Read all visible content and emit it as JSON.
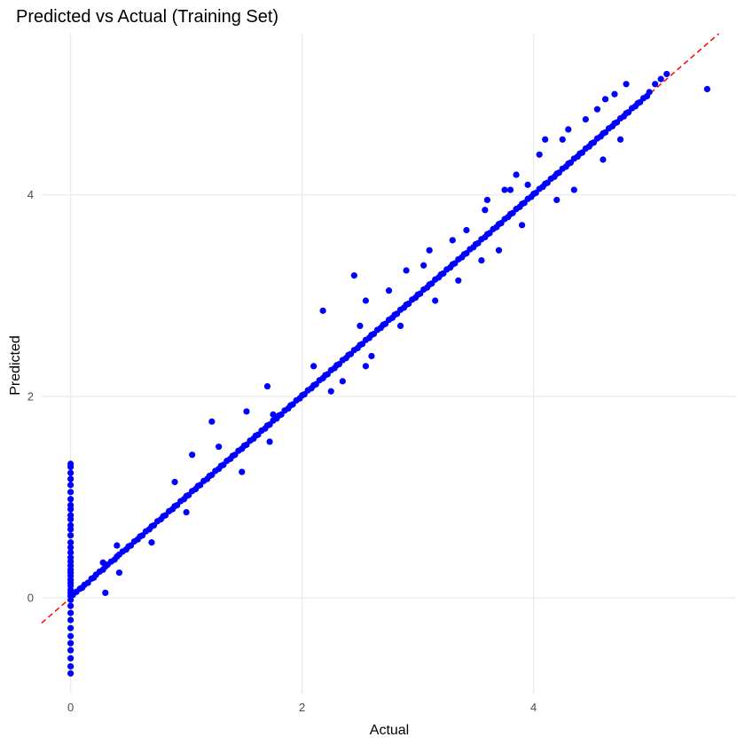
{
  "chart_data": {
    "type": "scatter",
    "title": "Predicted vs Actual (Training Set)",
    "xlabel": "Actual",
    "ylabel": "Predicted",
    "xlim": [
      -0.25,
      5.75
    ],
    "ylim": [
      -0.95,
      5.6
    ],
    "x_ticks": [
      0,
      2,
      4
    ],
    "x_tick_labels": [
      "0",
      "2",
      "4"
    ],
    "y_ticks": [
      0,
      2,
      4
    ],
    "y_tick_labels": [
      "0",
      "2",
      "4"
    ],
    "grid": true,
    "legend": "none",
    "reference_line": {
      "style": "dashed",
      "slope": 1,
      "intercept": 0,
      "color": "#ff0000"
    },
    "point_color": "#0000ff",
    "series": [
      {
        "x": [
          0,
          0,
          0,
          0,
          0,
          0,
          0,
          0,
          0,
          0,
          0,
          0,
          0,
          0,
          0,
          0,
          0,
          0,
          0,
          0,
          0,
          0,
          0,
          0,
          0,
          0,
          0,
          0,
          0,
          0,
          0,
          0,
          0,
          0,
          0,
          0,
          0,
          0,
          0,
          0,
          0.02,
          0.05,
          0.08,
          0.1,
          0.12,
          0.15,
          0.18,
          0.2,
          0.22,
          0.25,
          0.28,
          0.3,
          0.32,
          0.35,
          0.38,
          0.4,
          0.42,
          0.45,
          0.48,
          0.5,
          0.52,
          0.55,
          0.58,
          0.6,
          0.62,
          0.65,
          0.68,
          0.7,
          0.72,
          0.75,
          0.78,
          0.8,
          0.82,
          0.85,
          0.88,
          0.9,
          0.92,
          0.95,
          0.98,
          1.0,
          1.02,
          1.05,
          1.08,
          1.1,
          1.12,
          1.15,
          1.18,
          1.2,
          1.22,
          1.25,
          1.28,
          1.3,
          1.32,
          1.35,
          1.38,
          1.4,
          1.42,
          1.45,
          1.48,
          1.5,
          1.52,
          1.55,
          1.58,
          1.6,
          1.62,
          1.65,
          1.68,
          1.7,
          1.72,
          1.75,
          1.78,
          1.8,
          1.82,
          1.85,
          1.88,
          1.9,
          1.92,
          1.95,
          1.98,
          2.0,
          2.02,
          2.05,
          2.08,
          2.1,
          2.12,
          2.15,
          2.18,
          2.2,
          2.22,
          2.25,
          2.28,
          2.3,
          2.32,
          2.35,
          2.38,
          2.4,
          2.42,
          2.45,
          2.48,
          2.5,
          2.52,
          2.55,
          2.58,
          2.6,
          2.62,
          2.65,
          2.68,
          2.7,
          2.72,
          2.75,
          2.78,
          2.8,
          2.82,
          2.85,
          2.88,
          2.9,
          2.92,
          2.95,
          2.98,
          3.0,
          3.02,
          3.05,
          3.08,
          3.1,
          3.12,
          3.15,
          3.18,
          3.2,
          3.22,
          3.25,
          3.28,
          3.3,
          3.32,
          3.35,
          3.38,
          3.4,
          3.42,
          3.45,
          3.48,
          3.5,
          3.52,
          3.55,
          3.58,
          3.6,
          3.62,
          3.65,
          3.68,
          3.7,
          3.72,
          3.75,
          3.78,
          3.8,
          3.82,
          3.85,
          3.88,
          3.9,
          3.92,
          3.95,
          3.98,
          4.0,
          4.02,
          4.05,
          4.08,
          4.1,
          4.12,
          4.15,
          4.18,
          4.2,
          4.22,
          4.25,
          4.28,
          4.3,
          4.32,
          4.35,
          4.38,
          4.4,
          4.42,
          4.45,
          4.48,
          4.5,
          4.52,
          4.55,
          4.58,
          4.6,
          4.62,
          4.65,
          4.68,
          4.7,
          4.72,
          4.75,
          4.78,
          4.8,
          4.82,
          4.85,
          4.88,
          4.9,
          4.92,
          4.95,
          4.98,
          5.0,
          5.05,
          5.1,
          5.15,
          5.5,
          0.28,
          0.4,
          0.9,
          1.05,
          1.28,
          1.22,
          1.52,
          1.7,
          1.75,
          2.1,
          2.18,
          2.45,
          2.5,
          2.55,
          2.75,
          2.9,
          3.05,
          3.1,
          3.3,
          3.42,
          3.58,
          3.6,
          3.75,
          3.8,
          3.85,
          3.95,
          4.05,
          4.1,
          4.25,
          4.3,
          4.45,
          4.55,
          4.62,
          4.7,
          4.8,
          0.3,
          0.42,
          0.7,
          1.0,
          1.48,
          1.72,
          2.25,
          2.35,
          2.55,
          2.6,
          2.85,
          3.15,
          3.35,
          3.55,
          3.7,
          3.9,
          4.2,
          4.35,
          4.6,
          4.75
        ],
        "y": [
          -0.75,
          -0.68,
          -0.6,
          -0.52,
          -0.45,
          -0.38,
          -0.3,
          -0.22,
          -0.15,
          -0.08,
          -0.02,
          0.02,
          0.05,
          0.08,
          0.12,
          0.15,
          0.18,
          0.22,
          0.25,
          0.28,
          0.32,
          0.36,
          0.4,
          0.45,
          0.5,
          0.55,
          0.62,
          0.68,
          0.72,
          0.78,
          0.82,
          0.88,
          0.92,
          0.98,
          1.05,
          1.12,
          1.18,
          1.24,
          1.3,
          1.33,
          0.03,
          0.06,
          0.09,
          0.1,
          0.13,
          0.15,
          0.19,
          0.2,
          0.23,
          0.26,
          0.28,
          0.31,
          0.33,
          0.36,
          0.38,
          0.41,
          0.43,
          0.46,
          0.48,
          0.51,
          0.52,
          0.56,
          0.58,
          0.61,
          0.62,
          0.66,
          0.68,
          0.71,
          0.72,
          0.76,
          0.78,
          0.81,
          0.82,
          0.86,
          0.88,
          0.91,
          0.92,
          0.96,
          0.98,
          1.01,
          1.02,
          1.06,
          1.08,
          1.11,
          1.12,
          1.16,
          1.18,
          1.21,
          1.22,
          1.26,
          1.28,
          1.31,
          1.32,
          1.36,
          1.38,
          1.41,
          1.42,
          1.46,
          1.48,
          1.51,
          1.52,
          1.56,
          1.58,
          1.61,
          1.62,
          1.66,
          1.68,
          1.71,
          1.72,
          1.76,
          1.78,
          1.81,
          1.82,
          1.86,
          1.88,
          1.91,
          1.92,
          1.96,
          1.98,
          2.01,
          2.02,
          2.06,
          2.08,
          2.11,
          2.12,
          2.16,
          2.18,
          2.21,
          2.22,
          2.26,
          2.28,
          2.31,
          2.32,
          2.36,
          2.38,
          2.41,
          2.42,
          2.46,
          2.48,
          2.51,
          2.52,
          2.56,
          2.58,
          2.61,
          2.62,
          2.66,
          2.68,
          2.71,
          2.72,
          2.76,
          2.78,
          2.81,
          2.82,
          2.86,
          2.88,
          2.91,
          2.92,
          2.96,
          2.98,
          3.01,
          3.02,
          3.06,
          3.08,
          3.11,
          3.12,
          3.16,
          3.18,
          3.21,
          3.22,
          3.26,
          3.28,
          3.31,
          3.32,
          3.36,
          3.38,
          3.41,
          3.42,
          3.46,
          3.48,
          3.51,
          3.52,
          3.56,
          3.58,
          3.61,
          3.62,
          3.66,
          3.68,
          3.71,
          3.72,
          3.76,
          3.78,
          3.81,
          3.82,
          3.86,
          3.88,
          3.91,
          3.92,
          3.96,
          3.98,
          4.01,
          4.02,
          4.06,
          4.08,
          4.11,
          4.12,
          4.16,
          4.18,
          4.21,
          4.22,
          4.26,
          4.28,
          4.31,
          4.32,
          4.36,
          4.38,
          4.41,
          4.42,
          4.46,
          4.48,
          4.51,
          4.52,
          4.56,
          4.58,
          4.61,
          4.62,
          4.66,
          4.68,
          4.71,
          4.72,
          4.76,
          4.78,
          4.81,
          4.82,
          4.86,
          4.88,
          4.91,
          4.92,
          4.96,
          4.98,
          5.02,
          5.1,
          5.15,
          5.2,
          5.05,
          0.35,
          0.52,
          1.15,
          1.42,
          1.5,
          1.75,
          1.85,
          2.1,
          1.82,
          2.3,
          2.85,
          3.2,
          2.7,
          2.95,
          3.05,
          3.25,
          3.3,
          3.45,
          3.55,
          3.65,
          3.85,
          3.95,
          4.05,
          4.05,
          4.2,
          4.1,
          4.4,
          4.55,
          4.55,
          4.65,
          4.75,
          4.85,
          4.95,
          5.0,
          5.1,
          0.05,
          0.25,
          0.55,
          0.85,
          1.25,
          1.55,
          2.05,
          2.15,
          2.3,
          2.4,
          2.7,
          2.95,
          3.15,
          3.35,
          3.45,
          3.7,
          3.95,
          4.05,
          4.35,
          4.55
        ]
      }
    ]
  }
}
